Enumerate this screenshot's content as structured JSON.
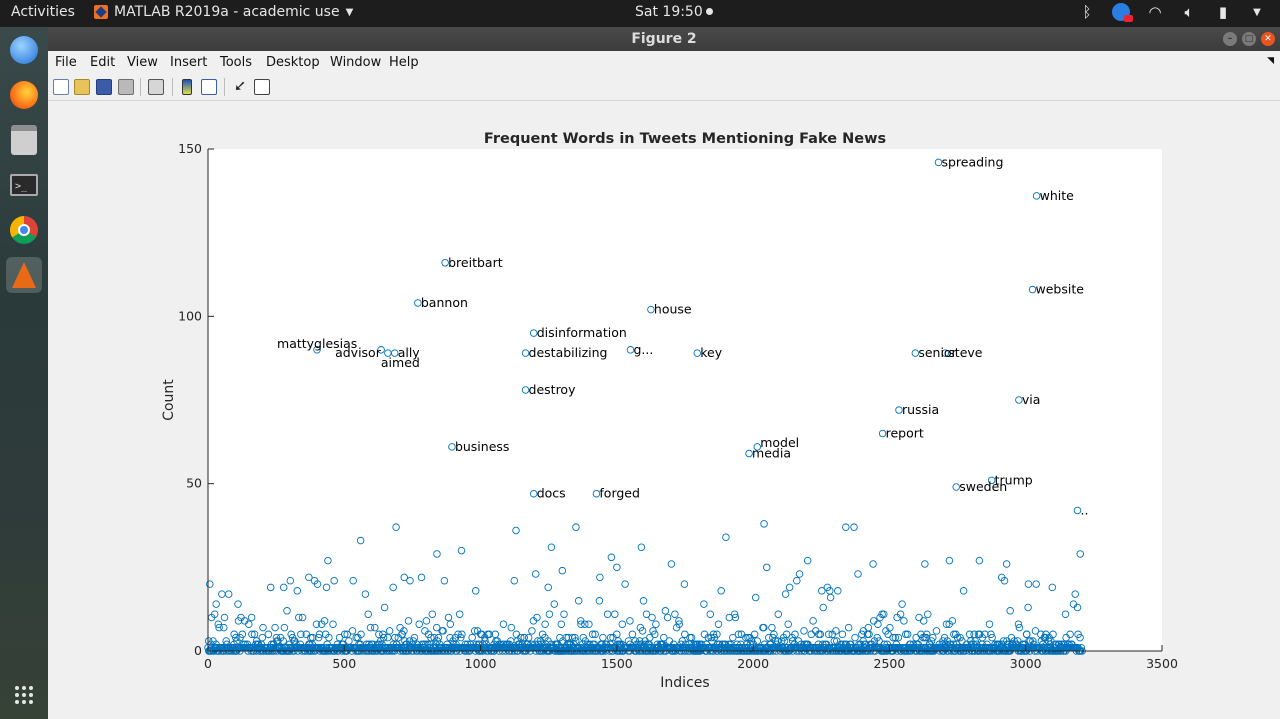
{
  "topbar": {
    "activities": "Activities",
    "app_menu": "MATLAB R2019a - academic use",
    "clock": "Sat 19:50",
    "tray_icons": [
      "bluetooth-icon",
      "update-badge-icon",
      "wifi-icon",
      "volume-icon",
      "battery-icon",
      "power-menu-icon"
    ]
  },
  "dock": {
    "items": [
      "thunderbird-icon",
      "firefox-icon",
      "files-icon",
      "terminal-icon",
      "chrome-icon",
      "matlab-icon"
    ],
    "show_apps": "show-applications-icon"
  },
  "window": {
    "title": "Figure 2",
    "menus": [
      "File",
      "Edit",
      "View",
      "Insert",
      "Tools",
      "Desktop",
      "Window",
      "Help"
    ],
    "toolbar": [
      "new-figure-icon",
      "open-file-icon",
      "save-icon",
      "print-icon",
      "link-plot-icon",
      "insert-colorbar-icon",
      "insert-legend-icon",
      "edit-plot-icon",
      "plot-browser-icon"
    ]
  },
  "chart_data": {
    "type": "scatter",
    "title": "Frequent Words in Tweets Mentioning Fake News",
    "xlabel": "Indices",
    "ylabel": "Count",
    "xlim": [
      0,
      3500
    ],
    "ylim": [
      0,
      150
    ],
    "xticks": [
      0,
      500,
      1000,
      1500,
      2000,
      2500,
      3000,
      3500
    ],
    "yticks": [
      0,
      50,
      100,
      150
    ],
    "marker_color": "#0072BD",
    "labeled_points": [
      {
        "x": 2680,
        "y": 146,
        "label": "spreading"
      },
      {
        "x": 3040,
        "y": 136,
        "label": "white"
      },
      {
        "x": 870,
        "y": 116,
        "label": "breitbart"
      },
      {
        "x": 770,
        "y": 104,
        "label": "bannon"
      },
      {
        "x": 3025,
        "y": 108,
        "label": "website"
      },
      {
        "x": 1625,
        "y": 102,
        "label": "house"
      },
      {
        "x": 1195,
        "y": 95,
        "label": "disinformation"
      },
      {
        "x": 400,
        "y": 90,
        "label": "mattyglesias"
      },
      {
        "x": 635,
        "y": 90,
        "label": "advisor"
      },
      {
        "x": 660,
        "y": 89,
        "label": "aimed"
      },
      {
        "x": 685,
        "y": 89,
        "label": "ally"
      },
      {
        "x": 1165,
        "y": 89,
        "label": "destabilizing"
      },
      {
        "x": 1550,
        "y": 90,
        "label": "g..."
      },
      {
        "x": 1795,
        "y": 89,
        "label": "key"
      },
      {
        "x": 2595,
        "y": 89,
        "label": "senior"
      },
      {
        "x": 2705,
        "y": 89,
        "label": "steve"
      },
      {
        "x": 1165,
        "y": 78,
        "label": "destroy"
      },
      {
        "x": 2975,
        "y": 75,
        "label": "via"
      },
      {
        "x": 2535,
        "y": 72,
        "label": "russia"
      },
      {
        "x": 2475,
        "y": 65,
        "label": "report"
      },
      {
        "x": 895,
        "y": 61,
        "label": "business"
      },
      {
        "x": 2015,
        "y": 61,
        "label": "model"
      },
      {
        "x": 1985,
        "y": 59,
        "label": "media"
      },
      {
        "x": 2875,
        "y": 51,
        "label": "trump"
      },
      {
        "x": 2745,
        "y": 49,
        "label": "sweden"
      },
      {
        "x": 1195,
        "y": 47,
        "label": "docs"
      },
      {
        "x": 1425,
        "y": 47,
        "label": "forged"
      },
      {
        "x": 3190,
        "y": 42,
        "label": ".."
      }
    ],
    "mid_points": [
      {
        "x": 30,
        "y": 14
      },
      {
        "x": 230,
        "y": 19
      },
      {
        "x": 370,
        "y": 22
      },
      {
        "x": 440,
        "y": 27
      },
      {
        "x": 560,
        "y": 33
      },
      {
        "x": 690,
        "y": 37
      },
      {
        "x": 720,
        "y": 22
      },
      {
        "x": 840,
        "y": 29
      },
      {
        "x": 930,
        "y": 30
      },
      {
        "x": 1130,
        "y": 36
      },
      {
        "x": 1260,
        "y": 31
      },
      {
        "x": 1350,
        "y": 37
      },
      {
        "x": 1480,
        "y": 28
      },
      {
        "x": 1590,
        "y": 31
      },
      {
        "x": 1700,
        "y": 26
      },
      {
        "x": 1900,
        "y": 34
      },
      {
        "x": 2040,
        "y": 38
      },
      {
        "x": 2200,
        "y": 27
      },
      {
        "x": 2340,
        "y": 37
      },
      {
        "x": 2370,
        "y": 37
      },
      {
        "x": 2630,
        "y": 26
      },
      {
        "x": 2720,
        "y": 27
      },
      {
        "x": 2830,
        "y": 27
      },
      {
        "x": 2930,
        "y": 26
      },
      {
        "x": 3010,
        "y": 20
      },
      {
        "x": 3200,
        "y": 29
      },
      {
        "x": 1300,
        "y": 24
      },
      {
        "x": 2050,
        "y": 25
      },
      {
        "x": 2440,
        "y": 26
      },
      {
        "x": 1500,
        "y": 25
      }
    ]
  }
}
